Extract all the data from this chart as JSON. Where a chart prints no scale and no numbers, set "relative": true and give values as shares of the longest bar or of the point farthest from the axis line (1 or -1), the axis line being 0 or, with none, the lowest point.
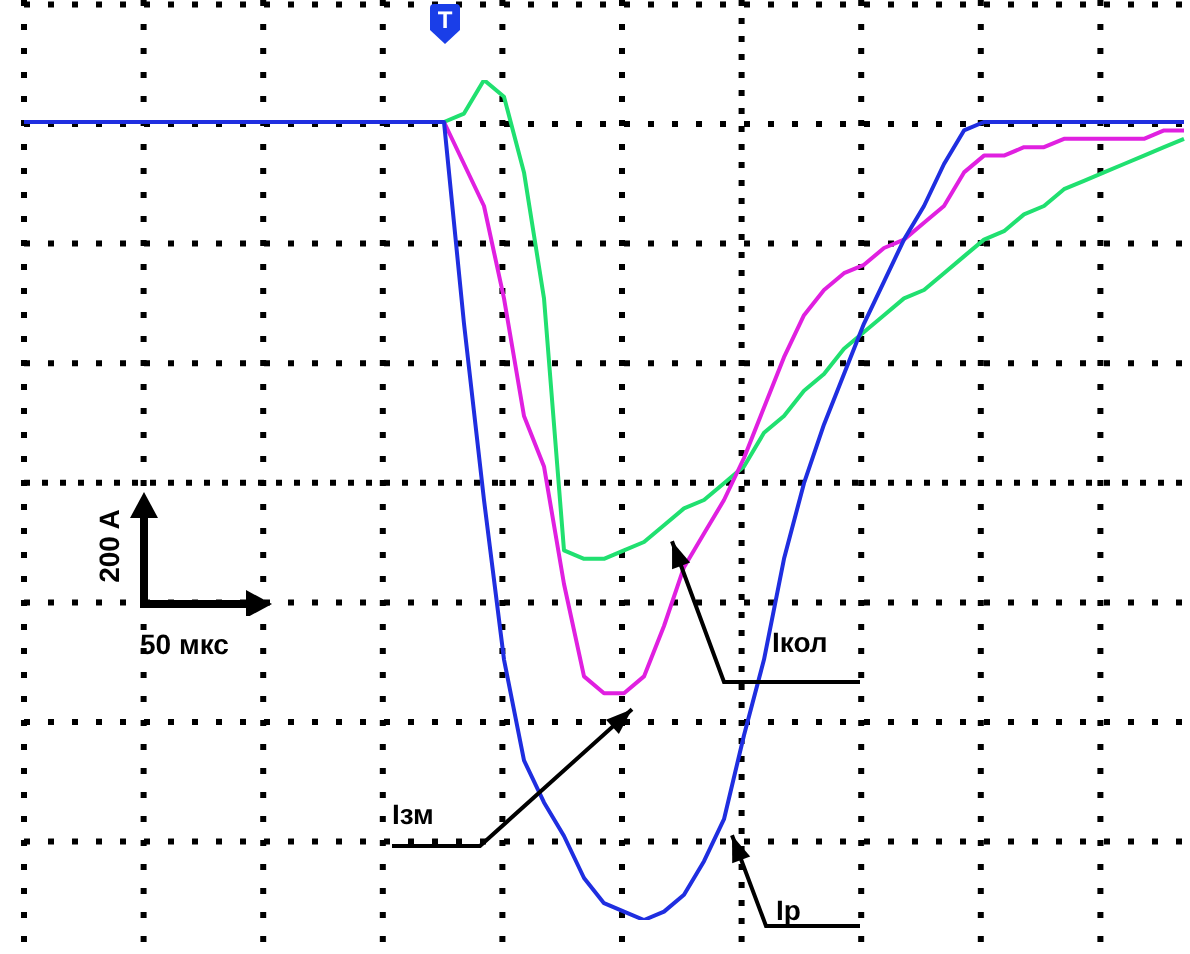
{
  "chart_data": {
    "type": "line",
    "relative": true,
    "grid": true,
    "marker": "none",
    "line_style": "solid",
    "categories": [
      null,
      null,
      null,
      null,
      null,
      null,
      null,
      null,
      null,
      null,
      null,
      null,
      null,
      null,
      null,
      null,
      null,
      null,
      null,
      null,
      null,
      null,
      null,
      null,
      null,
      null,
      null,
      null,
      null,
      null,
      null,
      null,
      null,
      null,
      null,
      null,
      null,
      null,
      null,
      null,
      null,
      null,
      null,
      null,
      null,
      null,
      null,
      null,
      null,
      null,
      null,
      null,
      null,
      null,
      null,
      null,
      null,
      null,
      null
    ],
    "series": [
      {
        "name": "Iр",
        "color": "#1f2ee0",
        "values": [
          0.95,
          0.95,
          0.95,
          0.95,
          0.95,
          0.95,
          0.95,
          0.95,
          0.95,
          0.95,
          0.95,
          0.95,
          0.95,
          0.95,
          0.95,
          0.95,
          0.95,
          0.95,
          0.95,
          0.95,
          0.95,
          0.95,
          0.71,
          0.5,
          0.31,
          0.19,
          0.14,
          0.1,
          0.05,
          0.02,
          0.01,
          0,
          0.01,
          0.03,
          0.07,
          0.12,
          0.22,
          0.31,
          0.43,
          0.52,
          0.59,
          0.65,
          0.71,
          0.76,
          0.81,
          0.85,
          0.9,
          0.94,
          0.95,
          0.95,
          0.95,
          0.95,
          0.95,
          0.95,
          0.95,
          0.95,
          0.95,
          0.95,
          0.95
        ]
      },
      {
        "name": "Iзм",
        "color": "#e020e0",
        "values": [
          null,
          null,
          null,
          null,
          null,
          null,
          null,
          null,
          null,
          null,
          null,
          null,
          null,
          null,
          null,
          null,
          null,
          null,
          null,
          null,
          null,
          0.95,
          0.9,
          0.85,
          0.74,
          0.6,
          0.54,
          0.4,
          0.29,
          0.27,
          0.27,
          0.29,
          0.35,
          0.42,
          0.46,
          0.5,
          0.55,
          0.61,
          0.67,
          0.72,
          0.75,
          0.77,
          0.78,
          0.8,
          0.81,
          0.83,
          0.85,
          0.89,
          0.91,
          0.91,
          0.92,
          0.92,
          0.93,
          0.93,
          0.93,
          0.93,
          0.93,
          0.94,
          0.94
        ]
      },
      {
        "name": "Iкол",
        "color": "#20e070",
        "values": [
          null,
          null,
          null,
          null,
          null,
          null,
          null,
          null,
          null,
          null,
          null,
          null,
          null,
          null,
          null,
          null,
          null,
          null,
          null,
          null,
          null,
          0.95,
          0.96,
          1,
          0.98,
          0.89,
          0.74,
          0.44,
          0.43,
          0.43,
          0.44,
          0.45,
          0.47,
          0.49,
          0.5,
          0.52,
          0.54,
          0.58,
          0.6,
          0.63,
          0.65,
          0.68,
          0.7,
          0.72,
          0.74,
          0.75,
          0.77,
          0.79,
          0.81,
          0.82,
          0.84,
          0.85,
          0.87,
          0.88,
          0.89,
          0.9,
          0.91,
          0.92,
          0.93
        ]
      }
    ],
    "annotations": [
      "T",
      "200 A",
      "50 мкс"
    ]
  }
}
